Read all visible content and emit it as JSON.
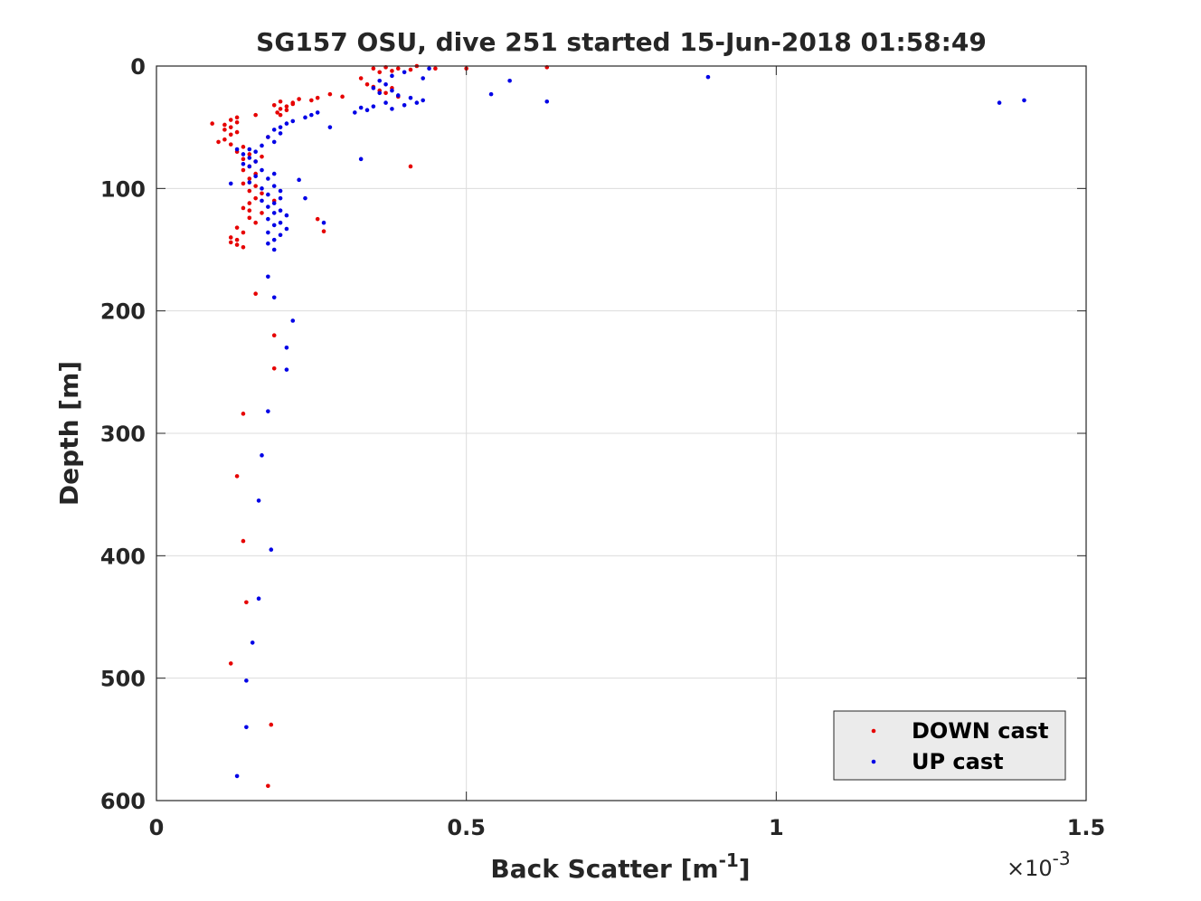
{
  "chart_data": {
    "type": "scatter",
    "title": "SG157 OSU, dive 251 started 15-Jun-2018 01:58:49",
    "xlabel_main": "Back Scatter [m",
    "xlabel_sup": "-1",
    "xlabel_end": "]",
    "ylabel": "Depth [m]",
    "x_multiplier_prefix": "×10",
    "x_multiplier_exp": "-3",
    "xlim": [
      0,
      1.5
    ],
    "ylim": [
      0,
      600
    ],
    "y_reversed": true,
    "grid": true,
    "legend_position": "bottom-right",
    "x_ticks": [
      {
        "v": 0,
        "label": "0"
      },
      {
        "v": 0.5,
        "label": "0.5"
      },
      {
        "v": 1,
        "label": "1"
      },
      {
        "v": 1.5,
        "label": "1.5"
      }
    ],
    "y_ticks": [
      {
        "v": 0,
        "label": "0"
      },
      {
        "v": 100,
        "label": "100"
      },
      {
        "v": 200,
        "label": "200"
      },
      {
        "v": 300,
        "label": "300"
      },
      {
        "v": 400,
        "label": "400"
      },
      {
        "v": 500,
        "label": "500"
      },
      {
        "v": 600,
        "label": "600"
      }
    ],
    "series": [
      {
        "name": "DOWN cast",
        "color": "#e60000",
        "points": [
          [
            0.37,
            1
          ],
          [
            0.39,
            2
          ],
          [
            0.42,
            0
          ],
          [
            0.45,
            2
          ],
          [
            0.5,
            2
          ],
          [
            0.63,
            1
          ],
          [
            0.35,
            2
          ],
          [
            0.38,
            4
          ],
          [
            0.41,
            3
          ],
          [
            0.36,
            5
          ],
          [
            0.33,
            10
          ],
          [
            0.34,
            15
          ],
          [
            0.35,
            17
          ],
          [
            0.36,
            20
          ],
          [
            0.37,
            22
          ],
          [
            0.38,
            18
          ],
          [
            0.39,
            25
          ],
          [
            0.3,
            25
          ],
          [
            0.28,
            23
          ],
          [
            0.26,
            26
          ],
          [
            0.25,
            28
          ],
          [
            0.23,
            27
          ],
          [
            0.22,
            30
          ],
          [
            0.21,
            33
          ],
          [
            0.2,
            35
          ],
          [
            0.19,
            32
          ],
          [
            0.195,
            38
          ],
          [
            0.2,
            29
          ],
          [
            0.21,
            36
          ],
          [
            0.22,
            31
          ],
          [
            0.2,
            40
          ],
          [
            0.16,
            40
          ],
          [
            0.13,
            42
          ],
          [
            0.12,
            44
          ],
          [
            0.13,
            46
          ],
          [
            0.11,
            48
          ],
          [
            0.09,
            47
          ],
          [
            0.12,
            50
          ],
          [
            0.11,
            52
          ],
          [
            0.13,
            54
          ],
          [
            0.12,
            56
          ],
          [
            0.11,
            60
          ],
          [
            0.1,
            62
          ],
          [
            0.12,
            64
          ],
          [
            0.14,
            66
          ],
          [
            0.13,
            70
          ],
          [
            0.15,
            72
          ],
          [
            0.14,
            76
          ],
          [
            0.16,
            78
          ],
          [
            0.15,
            82
          ],
          [
            0.14,
            85
          ],
          [
            0.16,
            88
          ],
          [
            0.15,
            92
          ],
          [
            0.14,
            96
          ],
          [
            0.16,
            98
          ],
          [
            0.15,
            102
          ],
          [
            0.17,
            104
          ],
          [
            0.16,
            108
          ],
          [
            0.15,
            112
          ],
          [
            0.14,
            116
          ],
          [
            0.15,
            118
          ],
          [
            0.17,
            120
          ],
          [
            0.15,
            124
          ],
          [
            0.16,
            128
          ],
          [
            0.13,
            132
          ],
          [
            0.14,
            136
          ],
          [
            0.12,
            140
          ],
          [
            0.13,
            142
          ],
          [
            0.12,
            144
          ],
          [
            0.13,
            146
          ],
          [
            0.14,
            148
          ],
          [
            0.26,
            125
          ],
          [
            0.27,
            135
          ],
          [
            0.41,
            82
          ],
          [
            0.16,
            186
          ],
          [
            0.19,
            220
          ],
          [
            0.19,
            247
          ],
          [
            0.14,
            284
          ],
          [
            0.13,
            335
          ],
          [
            0.14,
            388
          ],
          [
            0.145,
            438
          ],
          [
            0.12,
            488
          ],
          [
            0.185,
            538
          ],
          [
            0.18,
            588
          ],
          [
            0.18,
            58
          ],
          [
            0.17,
            74
          ],
          [
            0.19,
            110
          ]
        ]
      },
      {
        "name": "UP cast",
        "color": "#0000e6",
        "points": [
          [
            0.43,
            10
          ],
          [
            0.44,
            2
          ],
          [
            0.4,
            5
          ],
          [
            0.38,
            8
          ],
          [
            0.36,
            12
          ],
          [
            0.37,
            15
          ],
          [
            0.35,
            18
          ],
          [
            0.38,
            20
          ],
          [
            0.36,
            22
          ],
          [
            0.39,
            24
          ],
          [
            0.41,
            26
          ],
          [
            0.43,
            28
          ],
          [
            0.42,
            30
          ],
          [
            0.4,
            32
          ],
          [
            0.38,
            35
          ],
          [
            0.37,
            30
          ],
          [
            0.35,
            33
          ],
          [
            0.34,
            36
          ],
          [
            0.33,
            34
          ],
          [
            0.32,
            38
          ],
          [
            0.54,
            23
          ],
          [
            0.57,
            12
          ],
          [
            0.63,
            29
          ],
          [
            0.89,
            9
          ],
          [
            1.36,
            30
          ],
          [
            1.4,
            28
          ],
          [
            0.26,
            38
          ],
          [
            0.25,
            40
          ],
          [
            0.24,
            42
          ],
          [
            0.22,
            45
          ],
          [
            0.21,
            47
          ],
          [
            0.2,
            50
          ],
          [
            0.19,
            52
          ],
          [
            0.2,
            55
          ],
          [
            0.18,
            58
          ],
          [
            0.19,
            62
          ],
          [
            0.17,
            65
          ],
          [
            0.15,
            68
          ],
          [
            0.16,
            70
          ],
          [
            0.14,
            72
          ],
          [
            0.15,
            75
          ],
          [
            0.16,
            78
          ],
          [
            0.14,
            80
          ],
          [
            0.15,
            82
          ],
          [
            0.17,
            85
          ],
          [
            0.19,
            88
          ],
          [
            0.16,
            90
          ],
          [
            0.18,
            92
          ],
          [
            0.15,
            95
          ],
          [
            0.19,
            98
          ],
          [
            0.17,
            100
          ],
          [
            0.2,
            102
          ],
          [
            0.18,
            105
          ],
          [
            0.2,
            108
          ],
          [
            0.17,
            110
          ],
          [
            0.19,
            112
          ],
          [
            0.18,
            115
          ],
          [
            0.2,
            118
          ],
          [
            0.19,
            120
          ],
          [
            0.21,
            122
          ],
          [
            0.18,
            125
          ],
          [
            0.2,
            128
          ],
          [
            0.19,
            130
          ],
          [
            0.21,
            133
          ],
          [
            0.18,
            136
          ],
          [
            0.2,
            138
          ],
          [
            0.19,
            142
          ],
          [
            0.18,
            145
          ],
          [
            0.19,
            150
          ],
          [
            0.12,
            96
          ],
          [
            0.13,
            68
          ],
          [
            0.23,
            93
          ],
          [
            0.24,
            108
          ],
          [
            0.27,
            128
          ],
          [
            0.28,
            50
          ],
          [
            0.33,
            76
          ],
          [
            0.18,
            172
          ],
          [
            0.19,
            189
          ],
          [
            0.22,
            208
          ],
          [
            0.21,
            230
          ],
          [
            0.21,
            248
          ],
          [
            0.18,
            282
          ],
          [
            0.17,
            318
          ],
          [
            0.165,
            355
          ],
          [
            0.185,
            395
          ],
          [
            0.165,
            435
          ],
          [
            0.155,
            471
          ],
          [
            0.145,
            502
          ],
          [
            0.145,
            540
          ],
          [
            0.13,
            580
          ]
        ]
      }
    ]
  }
}
